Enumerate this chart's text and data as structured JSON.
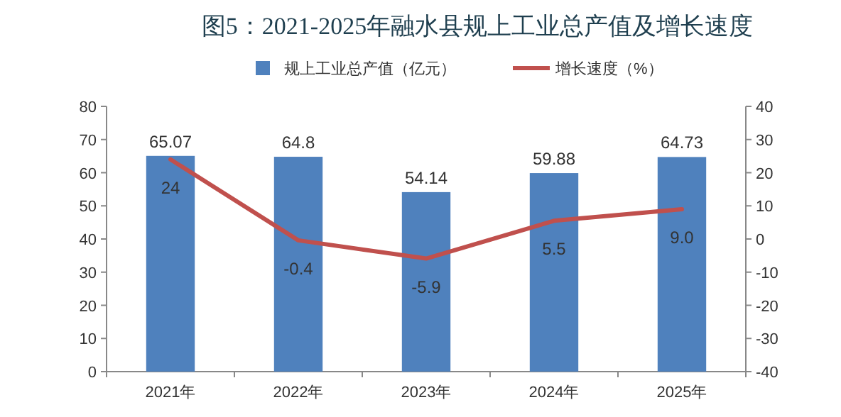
{
  "chart_data": {
    "type": "bar",
    "title": "图5：2021-2025年融水县规上工业总产值及增长速度",
    "categories": [
      "2021年",
      "2022年",
      "2023年",
      "2024年",
      "2025年"
    ],
    "series": [
      {
        "name": "规上工业总产值（亿元）",
        "color": "#4f81bd",
        "values": [
          65.07,
          64.8,
          54.14,
          59.88,
          64.73
        ],
        "value_labels": [
          "65.07",
          "64.8",
          "54.14",
          "59.88",
          "64.73"
        ]
      },
      {
        "name": "增长速度（%）",
        "type": "line",
        "axis": "y2",
        "color": "#c0504d",
        "values": [
          24,
          -0.4,
          -5.9,
          5.5,
          9.0
        ],
        "value_labels": [
          "24",
          "-0.4",
          "-5.9",
          "5.5",
          "9.0"
        ]
      }
    ],
    "ylim": [
      0,
      80
    ],
    "yticks": [
      0,
      10,
      20,
      30,
      40,
      50,
      60,
      70,
      80
    ],
    "y2lim": [
      -40,
      40
    ],
    "y2ticks": [
      -40,
      -30,
      -20,
      -10,
      0,
      10,
      20,
      30,
      40
    ],
    "legend": "top"
  }
}
